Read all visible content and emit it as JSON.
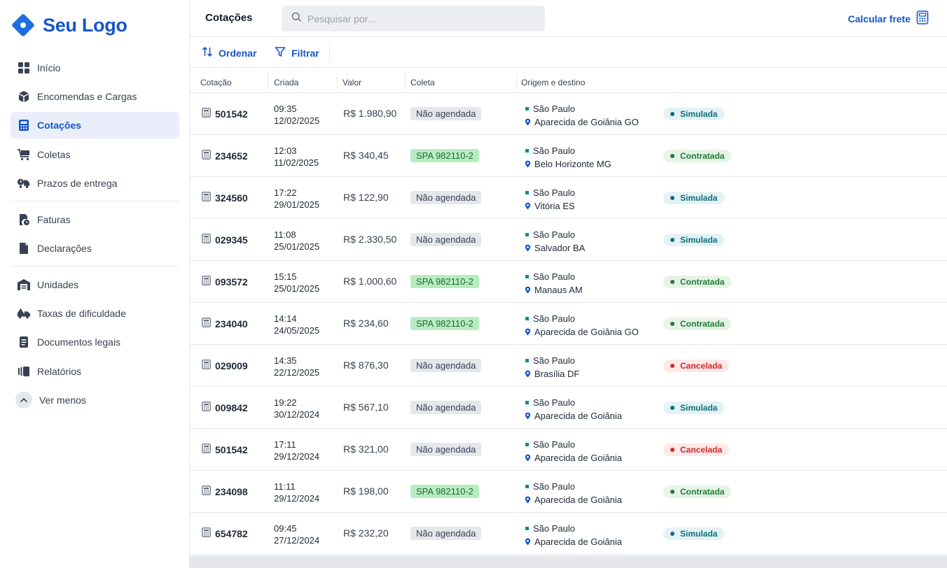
{
  "brand": {
    "logo_text": "Seu Logo",
    "accent": "#1656c8"
  },
  "sidebar": {
    "items": [
      {
        "label": "Início",
        "icon": "grid-icon"
      },
      {
        "label": "Encomendas e Cargas",
        "icon": "package-icon"
      },
      {
        "label": "Cotações",
        "icon": "calculator-icon",
        "active": true
      },
      {
        "label": "Coletas",
        "icon": "cart-icon"
      },
      {
        "label": "Prazos de entrega",
        "icon": "truck-clock-icon"
      },
      {
        "label": "Faturas",
        "icon": "invoice-icon"
      },
      {
        "label": "Declarações",
        "icon": "document-icon"
      },
      {
        "label": "Unidades",
        "icon": "warehouse-icon"
      },
      {
        "label": "Taxas de dificuldade",
        "icon": "truck-alert-icon"
      },
      {
        "label": "Documentos legais",
        "icon": "legal-document-icon"
      },
      {
        "label": "Relatórios",
        "icon": "reports-icon"
      }
    ],
    "ver_menos": "Ver menos"
  },
  "header": {
    "title": "Cotações",
    "search_placeholder": "Pesquisar por...",
    "calc_label": "Calcular frete"
  },
  "toolbar": {
    "sort_label": "Ordenar",
    "filter_label": "Filtrar"
  },
  "table": {
    "columns": [
      "Cotação",
      "Criada",
      "Valor",
      "Coleta",
      "Origem e destino"
    ],
    "rows": [
      {
        "id": "501542",
        "time": "09:35",
        "date": "12/02/2025",
        "value": "R$ 1.980,90",
        "coleta": "Não agendada",
        "coleta_type": "na",
        "origin": "São Paulo",
        "dest": "Aparecida de Goiânia GO",
        "status": "Simulada",
        "status_type": "sim"
      },
      {
        "id": "234652",
        "time": "12:03",
        "date": "11/02/2025",
        "value": "R$ 340,45",
        "coleta": "SPA 982110-2",
        "coleta_type": "ok",
        "origin": "São Paulo",
        "dest": "Belo Horizonte MG",
        "status": "Contratada",
        "status_type": "con"
      },
      {
        "id": "324560",
        "time": "17:22",
        "date": "29/01/2025",
        "value": "R$ 122,90",
        "coleta": "Não agendada",
        "coleta_type": "na",
        "origin": "São Paulo",
        "dest": "Vitória ES",
        "status": "Simulada",
        "status_type": "sim"
      },
      {
        "id": "029345",
        "time": "11:08",
        "date": "25/01/2025",
        "value": "R$ 2.330,50",
        "coleta": "Não agendada",
        "coleta_type": "na",
        "origin": "São Paulo",
        "dest": "Salvador BA",
        "status": "Simulada",
        "status_type": "sim"
      },
      {
        "id": "093572",
        "time": "15:15",
        "date": "25/01/2025",
        "value": "R$ 1.000,60",
        "coleta": "SPA 982110-2",
        "coleta_type": "ok",
        "origin": "São Paulo",
        "dest": "Manaus AM",
        "status": "Contratada",
        "status_type": "con"
      },
      {
        "id": "234040",
        "time": "14:14",
        "date": "24/05/2025",
        "value": "R$ 234,60",
        "coleta": "SPA 982110-2",
        "coleta_type": "ok",
        "origin": "São Paulo",
        "dest": "Aparecida de Goiânia GO",
        "status": "Contratada",
        "status_type": "con"
      },
      {
        "id": "029009",
        "time": "14:35",
        "date": "22/12/2025",
        "value": "R$ 876,30",
        "coleta": "Não agendada",
        "coleta_type": "na",
        "origin": "São Paulo",
        "dest": "Brasília DF",
        "status": "Cancelada",
        "status_type": "can"
      },
      {
        "id": "009842",
        "time": "19:22",
        "date": "30/12/2024",
        "value": "R$ 567,10",
        "coleta": "Não agendada",
        "coleta_type": "na",
        "origin": "São Paulo",
        "dest": "Aparecida de Goiânia",
        "status": "Simulada",
        "status_type": "sim"
      },
      {
        "id": "501542",
        "time": "17:11",
        "date": "29/12/2024",
        "value": "R$ 321,00",
        "coleta": "Não agendada",
        "coleta_type": "na",
        "origin": "São Paulo",
        "dest": "Aparecida de Goiânia",
        "status": "Cancelada",
        "status_type": "can"
      },
      {
        "id": "234098",
        "time": "11:11",
        "date": "29/12/2024",
        "value": "R$ 198,00",
        "coleta": "SPA 982110-2",
        "coleta_type": "ok",
        "origin": "São Paulo",
        "dest": "Aparecida de Goiânia",
        "status": "Contratada",
        "status_type": "con"
      },
      {
        "id": "654782",
        "time": "09:45",
        "date": "27/12/2024",
        "value": "R$ 232,20",
        "coleta": "Não agendada",
        "coleta_type": "na",
        "origin": "São Paulo",
        "dest": "Aparecida de Goiânia",
        "status": "Simulada",
        "status_type": "sim"
      }
    ]
  }
}
